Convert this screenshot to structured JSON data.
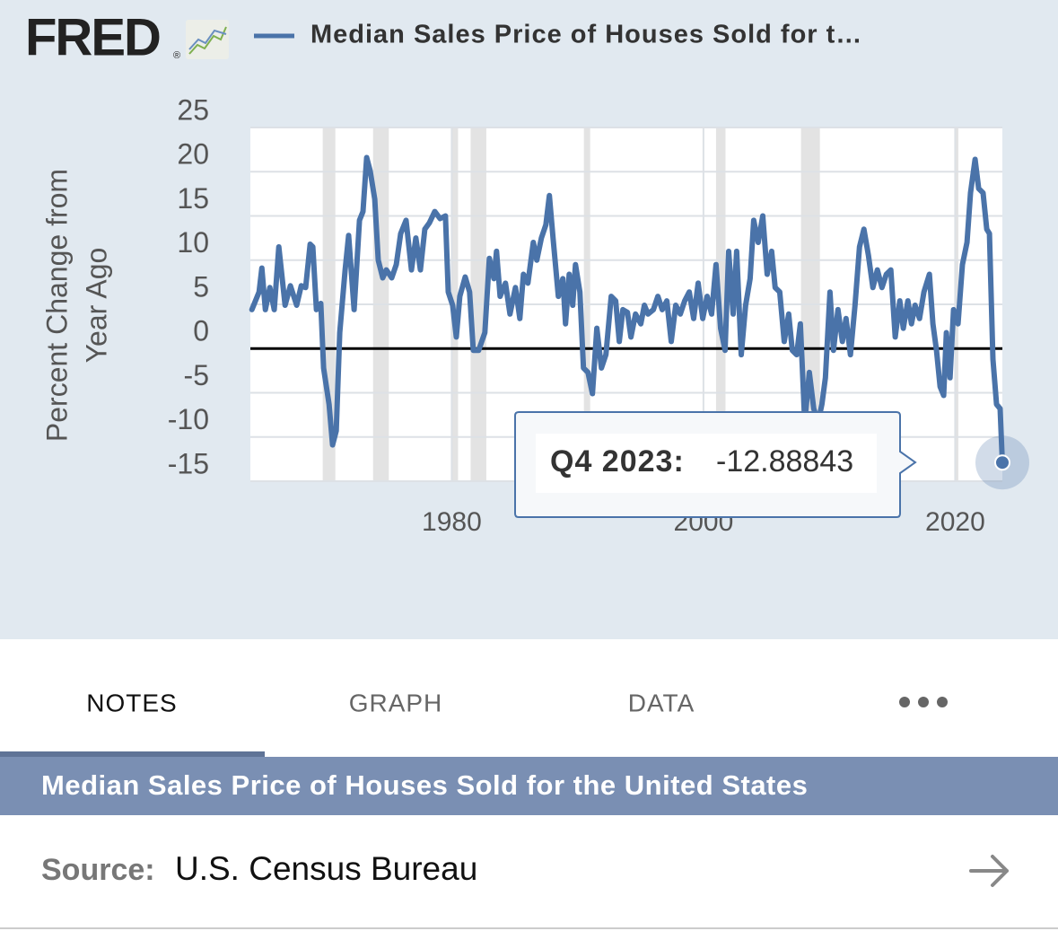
{
  "logo": {
    "text": "FRED",
    "mark": "®"
  },
  "chart_data": {
    "type": "line",
    "ylabel": [
      "Percent Change from",
      "Year Ago"
    ],
    "xlim": [
      1964,
      2023.75
    ],
    "xticks": [
      1980,
      2000,
      2020
    ],
    "ylim": [
      -15,
      25
    ],
    "yticks": [
      -15,
      -10,
      -5,
      0,
      5,
      10,
      15,
      20,
      25
    ],
    "grid": true,
    "recessions": [
      [
        1969.75,
        1970.75
      ],
      [
        1973.75,
        1975.0
      ],
      [
        1980.0,
        1980.5
      ],
      [
        1981.5,
        1982.75
      ],
      [
        1990.5,
        1991.0
      ],
      [
        2001.0,
        2001.75
      ],
      [
        2007.75,
        2009.25
      ],
      [
        2020.0,
        2020.25
      ]
    ],
    "tooltip": {
      "label": "Q4 2023:"
    },
    "series": [
      {
        "name": "Median Sales Price of Houses Sold for t…",
        "color": "#4a73a9",
        "x": [
          1964.12,
          1964.69,
          1964.91,
          1965.19,
          1965.55,
          1965.9,
          1966.26,
          1966.76,
          1967.18,
          1967.68,
          1968.04,
          1968.39,
          1968.75,
          1968.96,
          1969.25,
          1969.6,
          1969.82,
          1970.25,
          1970.53,
          1970.82,
          1971.1,
          1971.53,
          1971.81,
          1972.24,
          1972.67,
          1972.95,
          1973.24,
          1973.52,
          1973.88,
          1974.16,
          1974.52,
          1974.8,
          1975.23,
          1975.59,
          1975.94,
          1976.37,
          1976.8,
          1977.15,
          1977.51,
          1977.86,
          1978.22,
          1978.65,
          1979.07,
          1979.5,
          1979.72,
          1980.07,
          1980.36,
          1980.64,
          1981.07,
          1981.42,
          1981.71,
          1982.14,
          1982.63,
          1982.99,
          1983.35,
          1983.56,
          1983.84,
          1984.27,
          1984.63,
          1985.06,
          1985.41,
          1985.7,
          1986.05,
          1986.48,
          1986.76,
          1987.12,
          1987.48,
          1987.76,
          1988.05,
          1988.47,
          1988.83,
          1989.04,
          1989.33,
          1989.61,
          1989.83,
          1990.18,
          1990.47,
          1990.82,
          1991.18,
          1991.53,
          1991.89,
          1992.25,
          1992.67,
          1993.03,
          1993.31,
          1993.6,
          1993.96,
          1994.24,
          1994.6,
          1995.02,
          1995.31,
          1995.59,
          1996.02,
          1996.38,
          1996.73,
          1997.09,
          1997.44,
          1997.8,
          1998.16,
          1998.51,
          1998.87,
          1999.22,
          1999.58,
          1999.94,
          2000.29,
          2000.65,
          2001.0,
          2001.36,
          2001.72,
          2002.0,
          2002.36,
          2002.64,
          2003.0,
          2003.35,
          2003.71,
          2003.99,
          2004.35,
          2004.71,
          2005.06,
          2005.42,
          2005.7,
          2006.06,
          2006.42,
          2006.77,
          2007.06,
          2007.41,
          2007.7,
          2008.05,
          2008.41,
          2008.76,
          2009.12,
          2009.41,
          2009.69,
          2010.05,
          2010.33,
          2010.69,
          2011.04,
          2011.33,
          2011.68,
          2012.04,
          2012.4,
          2012.75,
          2013.11,
          2013.46,
          2013.82,
          2014.18,
          2014.53,
          2014.89,
          2015.24,
          2015.6,
          2015.88,
          2016.24,
          2016.53,
          2016.81,
          2017.17,
          2017.52,
          2017.95,
          2018.23,
          2018.52,
          2018.8,
          2019.09,
          2019.3,
          2019.59,
          2019.87,
          2020.23,
          2020.58,
          2020.94,
          2021.22,
          2021.58,
          2021.87,
          2022.22,
          2022.51,
          2022.72,
          2023.0,
          2023.29,
          2023.57,
          2023.75
        ],
        "values": [
          4.4,
          6.4,
          9.1,
          4.4,
          6.9,
          4.4,
          11.5,
          4.9,
          7.1,
          4.9,
          7.1,
          6.9,
          11.8,
          11.5,
          4.4,
          5.1,
          -2.2,
          -6.3,
          -10.9,
          -9.3,
          1.8,
          8.9,
          12.8,
          4.4,
          14.5,
          15.5,
          21.6,
          20.1,
          16.9,
          10.0,
          8.0,
          8.9,
          8.0,
          9.5,
          13.0,
          14.5,
          8.9,
          12.5,
          8.9,
          13.5,
          14.2,
          15.5,
          14.7,
          15.0,
          6.4,
          4.9,
          1.3,
          5.9,
          8.1,
          6.4,
          -0.2,
          -0.2,
          1.8,
          10.2,
          7.9,
          11.0,
          5.9,
          7.4,
          3.9,
          6.9,
          3.4,
          8.4,
          7.4,
          12.0,
          10.0,
          12.5,
          14.0,
          17.3,
          12.5,
          5.9,
          7.9,
          2.8,
          8.4,
          4.9,
          9.5,
          6.4,
          -2.2,
          -2.7,
          -5.1,
          2.3,
          -2.2,
          -0.7,
          5.9,
          5.4,
          0.8,
          4.4,
          4.1,
          1.3,
          3.9,
          2.8,
          4.9,
          3.9,
          4.4,
          5.9,
          4.4,
          5.4,
          0.8,
          4.9,
          3.9,
          5.4,
          6.4,
          3.4,
          7.4,
          3.4,
          5.9,
          3.9,
          9.5,
          2.3,
          -0.2,
          11.0,
          3.9,
          11.0,
          -0.7,
          4.9,
          7.9,
          14.5,
          12.0,
          15.0,
          8.4,
          11.0,
          6.9,
          6.4,
          0.8,
          3.9,
          -0.2,
          -0.7,
          2.8,
          -8.3,
          -2.7,
          -6.8,
          -8.3,
          -6.3,
          -3.3,
          6.4,
          -0.2,
          4.4,
          0.8,
          3.4,
          -0.7,
          4.9,
          11.5,
          13.5,
          10.5,
          6.9,
          8.9,
          6.9,
          8.4,
          8.9,
          1.3,
          5.4,
          2.3,
          5.4,
          2.8,
          4.9,
          3.4,
          6.4,
          8.4,
          2.8,
          -0.2,
          -4.3,
          -5.3,
          1.8,
          -3.3,
          4.4,
          2.8,
          9.5,
          12.0,
          17.6,
          21.4,
          18.1,
          17.6,
          13.5,
          13.0,
          -1.2,
          -6.3,
          -6.8,
          -12.88843
        ]
      }
    ]
  },
  "tabs": [
    "NOTES",
    "GRAPH",
    "DATA"
  ],
  "title": "Median Sales Price of Houses Sold for the United States",
  "source": {
    "label": "Source:",
    "value": "U.S. Census Bureau"
  }
}
